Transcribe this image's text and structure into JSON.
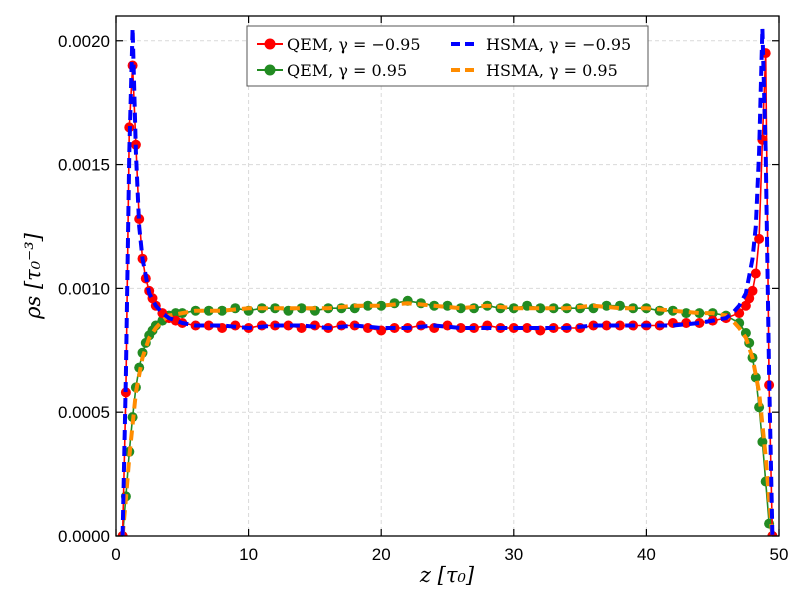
{
  "chart_data": {
    "type": "line",
    "title": "",
    "xlabel": "z [τ₀]",
    "ylabel": "ρs [τ₀⁻³]",
    "xlim": [
      0,
      50
    ],
    "ylim": [
      0,
      0.0021
    ],
    "x_ticks": [
      0,
      10,
      20,
      30,
      40,
      50
    ],
    "x_tick_labels": [
      "0",
      "10",
      "20",
      "30",
      "40",
      "50"
    ],
    "y_ticks": [
      0.0,
      0.0005,
      0.001,
      0.0015,
      0.002
    ],
    "y_tick_labels": [
      "0.0000",
      "0.0005",
      "0.0010",
      "0.0015",
      "0.0020"
    ],
    "grid": true,
    "legend_position": "top-center",
    "series": [
      {
        "name": "QEM, γ = −0.95",
        "color": "#ff0000",
        "style": "line-marker",
        "x": [
          0.5,
          0.75,
          1.0,
          1.25,
          1.5,
          1.75,
          2.0,
          2.25,
          2.5,
          2.75,
          3.0,
          3.5,
          4.0,
          4.5,
          5.0,
          6.0,
          7.0,
          8.0,
          9.0,
          10.0,
          11.0,
          12.0,
          13.0,
          14.0,
          15.0,
          16.0,
          17.0,
          18.0,
          19.0,
          20.0,
          21.0,
          22.0,
          23.0,
          24.0,
          25.0,
          26.0,
          27.0,
          28.0,
          29.0,
          30.0,
          31.0,
          32.0,
          33.0,
          34.0,
          35.0,
          36.0,
          37.0,
          38.0,
          39.0,
          40.0,
          41.0,
          42.0,
          43.0,
          44.0,
          45.0,
          46.0,
          47.0,
          47.5,
          47.75,
          48.0,
          48.25,
          48.5,
          48.75,
          49.0,
          49.25,
          49.5
        ],
        "y": [
          0.0,
          0.00058,
          0.00165,
          0.0019,
          0.00158,
          0.00128,
          0.00112,
          0.00104,
          0.00099,
          0.00096,
          0.00093,
          0.0009,
          0.00088,
          0.00087,
          0.00086,
          0.00085,
          0.00085,
          0.00084,
          0.00085,
          0.00084,
          0.00085,
          0.00085,
          0.00085,
          0.00084,
          0.00085,
          0.00084,
          0.00085,
          0.00085,
          0.00084,
          0.00083,
          0.00084,
          0.00084,
          0.00085,
          0.00084,
          0.00085,
          0.00084,
          0.00084,
          0.00085,
          0.00084,
          0.00084,
          0.00084,
          0.00083,
          0.00084,
          0.00084,
          0.00084,
          0.00085,
          0.00085,
          0.00085,
          0.00085,
          0.00085,
          0.00085,
          0.00086,
          0.00086,
          0.00086,
          0.00087,
          0.00088,
          0.0009,
          0.00093,
          0.00096,
          0.00099,
          0.00106,
          0.0012,
          0.0016,
          0.00195,
          0.00061,
          0.0
        ]
      },
      {
        "name": "QEM, γ = 0.95",
        "color": "#228b22",
        "style": "line-marker",
        "x": [
          0.5,
          0.75,
          1.0,
          1.25,
          1.5,
          1.75,
          2.0,
          2.25,
          2.5,
          2.75,
          3.0,
          3.5,
          4.0,
          4.5,
          5.0,
          6.0,
          7.0,
          8.0,
          9.0,
          10.0,
          11.0,
          12.0,
          13.0,
          14.0,
          15.0,
          16.0,
          17.0,
          18.0,
          19.0,
          20.0,
          21.0,
          22.0,
          23.0,
          24.0,
          25.0,
          26.0,
          27.0,
          28.0,
          29.0,
          30.0,
          31.0,
          32.0,
          33.0,
          34.0,
          35.0,
          36.0,
          37.0,
          38.0,
          39.0,
          40.0,
          41.0,
          42.0,
          43.0,
          44.0,
          45.0,
          46.0,
          47.0,
          47.5,
          47.75,
          48.0,
          48.25,
          48.5,
          48.75,
          49.0,
          49.25,
          49.5
        ],
        "y": [
          0.0,
          0.00016,
          0.00034,
          0.00048,
          0.0006,
          0.00068,
          0.00074,
          0.00078,
          0.00081,
          0.00083,
          0.00085,
          0.00087,
          0.00089,
          0.0009,
          0.0009,
          0.00091,
          0.00091,
          0.00091,
          0.00092,
          0.00091,
          0.00092,
          0.00092,
          0.00091,
          0.00092,
          0.00091,
          0.00092,
          0.00092,
          0.00092,
          0.00093,
          0.00093,
          0.00094,
          0.00095,
          0.00094,
          0.00093,
          0.00093,
          0.00092,
          0.00092,
          0.00093,
          0.00092,
          0.00092,
          0.00093,
          0.00092,
          0.00092,
          0.00092,
          0.00092,
          0.00092,
          0.00093,
          0.00093,
          0.00092,
          0.00092,
          0.00091,
          0.00091,
          0.0009,
          0.0009,
          0.0009,
          0.00089,
          0.00086,
          0.00082,
          0.00078,
          0.00072,
          0.00064,
          0.00052,
          0.00038,
          0.00022,
          5e-05,
          0.0
        ]
      },
      {
        "name": "HSMA, γ = −0.95",
        "color": "#0000ff",
        "style": "dashed",
        "x": [
          0.5,
          0.75,
          1.0,
          1.25,
          1.5,
          1.75,
          2.0,
          2.5,
          3.0,
          3.5,
          4.0,
          5.0,
          6.0,
          8.0,
          10.0,
          12.0,
          14.0,
          16.0,
          18.0,
          20.0,
          22.0,
          24.0,
          26.0,
          28.0,
          30.0,
          32.0,
          34.0,
          36.0,
          38.0,
          40.0,
          42.0,
          44.0,
          45.0,
          46.0,
          46.5,
          47.0,
          47.5,
          48.0,
          48.25,
          48.5,
          48.75,
          49.0,
          49.25,
          49.5
        ],
        "y": [
          0.0,
          0.00065,
          0.00155,
          0.00205,
          0.00155,
          0.00125,
          0.00112,
          0.00098,
          0.00093,
          0.0009,
          0.00088,
          0.00086,
          0.00085,
          0.00085,
          0.00084,
          0.00085,
          0.00085,
          0.00084,
          0.00085,
          0.00084,
          0.00084,
          0.00085,
          0.00084,
          0.00084,
          0.00084,
          0.00084,
          0.00084,
          0.00085,
          0.00085,
          0.00085,
          0.00085,
          0.00086,
          0.00087,
          0.00088,
          0.0009,
          0.00093,
          0.00098,
          0.00112,
          0.00125,
          0.00155,
          0.00205,
          0.00155,
          0.00065,
          0.0
        ]
      },
      {
        "name": "HSMA, γ = 0.95",
        "color": "#ff8c00",
        "style": "dashed",
        "x": [
          0.5,
          0.75,
          1.0,
          1.5,
          2.0,
          2.5,
          3.0,
          3.5,
          4.0,
          5.0,
          6.0,
          8.0,
          10.0,
          12.0,
          14.0,
          16.0,
          18.0,
          20.0,
          22.0,
          24.0,
          26.0,
          28.0,
          30.0,
          32.0,
          34.0,
          36.0,
          38.0,
          40.0,
          42.0,
          44.0,
          45.0,
          46.0,
          46.5,
          47.0,
          47.5,
          48.0,
          48.5,
          49.0,
          49.25,
          49.5
        ],
        "y": [
          0.0,
          0.00015,
          0.00032,
          0.00058,
          0.00072,
          0.0008,
          0.00084,
          0.00087,
          0.00089,
          0.0009,
          0.00091,
          0.00091,
          0.00092,
          0.00092,
          0.00092,
          0.00092,
          0.00093,
          0.00093,
          0.00094,
          0.00093,
          0.00092,
          0.00093,
          0.00092,
          0.00092,
          0.00092,
          0.00093,
          0.00092,
          0.00092,
          0.00091,
          0.0009,
          0.0009,
          0.00089,
          0.00087,
          0.00084,
          0.0008,
          0.00072,
          0.00058,
          0.00032,
          0.00015,
          0.0
        ]
      }
    ]
  }
}
